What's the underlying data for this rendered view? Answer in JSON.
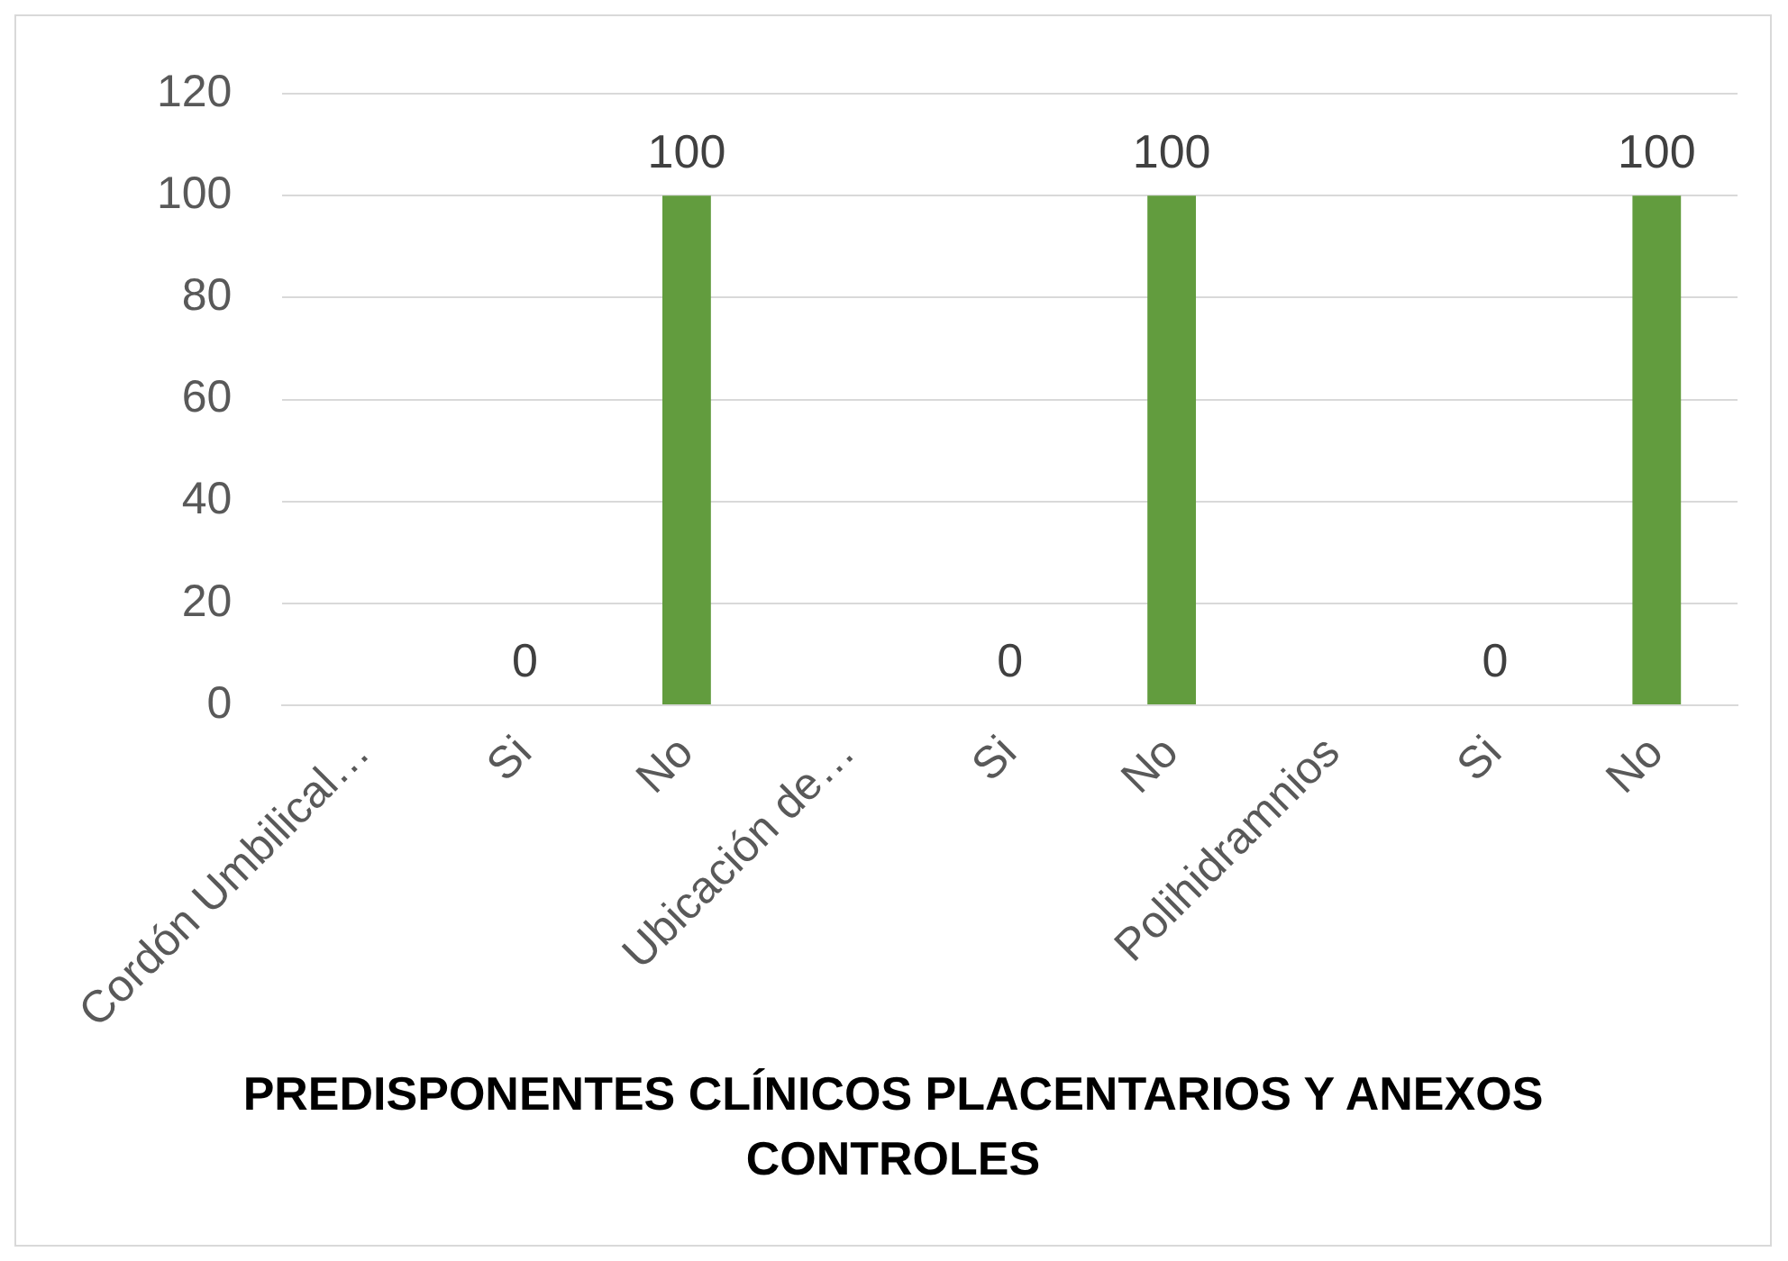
{
  "chart_data": {
    "type": "bar",
    "title": "PREDISPONENTES CLÍNICOS PLACENTARIOS Y ANEXOS",
    "subtitle": "CONTROLES",
    "categories": [
      "Cordón Umbilical…",
      "Si",
      "No",
      "Ubicación de…",
      "Si",
      "No",
      "Polihidramnios",
      "Si",
      "No"
    ],
    "values": [
      null,
      0,
      100,
      null,
      0,
      100,
      null,
      0,
      100
    ],
    "color": "#629c3e",
    "ylim": [
      0,
      120
    ],
    "yticks": [
      0,
      20,
      40,
      60,
      80,
      100,
      120
    ],
    "grid": "y",
    "data_labels": true
  }
}
